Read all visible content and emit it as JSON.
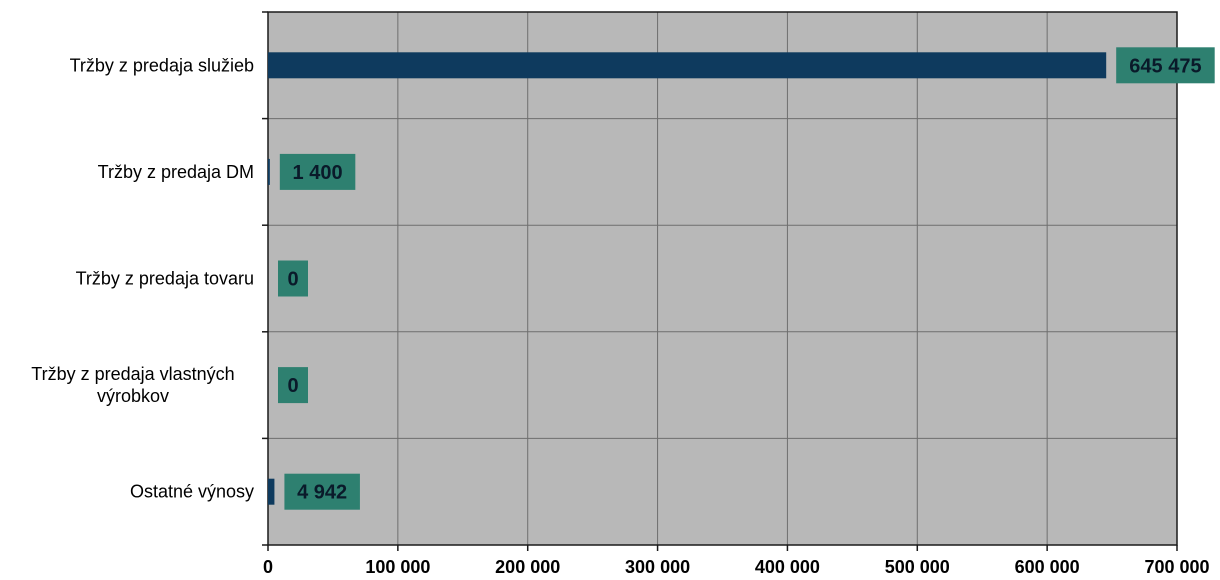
{
  "chart_data": {
    "type": "bar",
    "orientation": "horizontal",
    "categories": [
      "Tržby z predaja služieb",
      "Tržby z predaja DM",
      "Tržby z predaja tovaru",
      "Tržby z predaja vlastných výrobkov",
      "Ostatné výnosy"
    ],
    "category_lines": [
      [
        "Tržby z predaja služieb"
      ],
      [
        "Tržby z predaja DM"
      ],
      [
        "Tržby z predaja tovaru"
      ],
      [
        "Tržby z predaja vlastných",
        "výrobkov"
      ],
      [
        "Ostatné výnosy"
      ]
    ],
    "values": [
      645475,
      1400,
      0,
      0,
      4942
    ],
    "value_labels": [
      "645 475",
      "1 400",
      "0",
      "0",
      "4 942"
    ],
    "xlim": [
      0,
      700000
    ],
    "xticks": [
      0,
      100000,
      200000,
      300000,
      400000,
      500000,
      600000,
      700000
    ],
    "xtick_labels": [
      "0",
      "100 000",
      "200 000",
      "300 000",
      "400 000",
      "500 000",
      "600 000",
      "700 000"
    ],
    "grid": true,
    "legend": "none",
    "colors": {
      "bar": "#0e3a5e",
      "plot_bg": "#b8b8b8",
      "grid": "#6e6e6e",
      "label_bg": "#2e8070",
      "label_text": "#0a1a2a"
    }
  }
}
